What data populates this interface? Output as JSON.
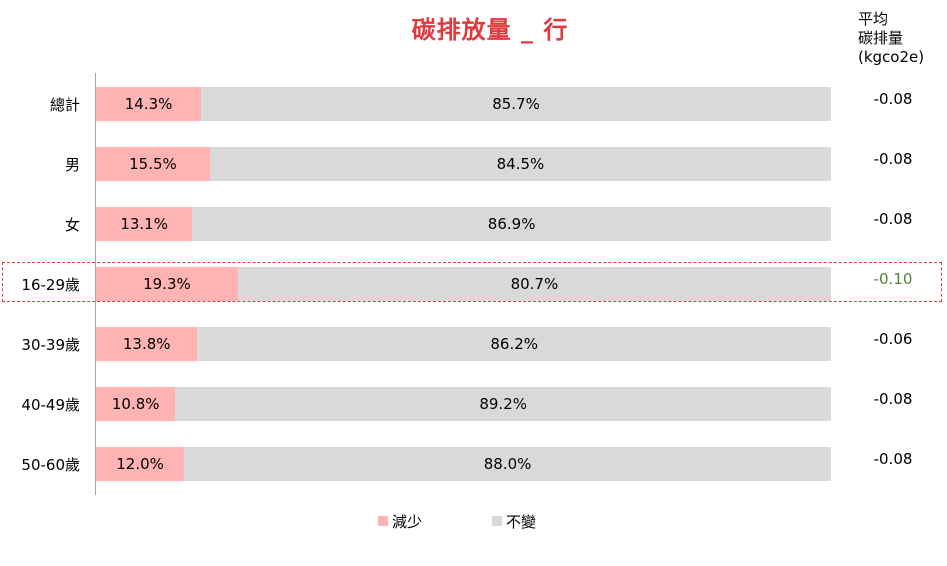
{
  "colors": {
    "title": "#e0393e",
    "reduce": "#ffb3b3",
    "unchanged": "#d9d9d9",
    "highlight_value": "#548235",
    "highlight_border": "#e0393e"
  },
  "side_header": {
    "line1": "平均",
    "line2": "碳排量",
    "line3": "(kgco2e)"
  },
  "chart_data": {
    "type": "bar",
    "orientation": "horizontal",
    "stacked": true,
    "percent_stacked": true,
    "title": "碳排放量 _ 行",
    "xlim": [
      0,
      100
    ],
    "legend_position": "bottom",
    "categories": [
      "總計",
      "男",
      "女",
      "16-29歲",
      "30-39歲",
      "40-49歲",
      "50-60歲"
    ],
    "series": [
      {
        "name": "減少",
        "values": [
          14.3,
          15.5,
          13.1,
          19.3,
          13.8,
          10.8,
          12.0
        ],
        "labels": [
          "14.3%",
          "15.5%",
          "13.1%",
          "19.3%",
          "13.8%",
          "10.8%",
          "12.0%"
        ]
      },
      {
        "name": "不變",
        "values": [
          85.7,
          84.5,
          86.9,
          80.7,
          86.2,
          89.2,
          88.0
        ],
        "labels": [
          "85.7%",
          "84.5%",
          "86.9%",
          "80.7%",
          "86.2%",
          "89.2%",
          "88.0%"
        ]
      }
    ],
    "avg_emission": [
      "-0.08",
      "-0.08",
      "-0.08",
      "-0.10",
      "-0.06",
      "-0.08",
      "-0.08"
    ],
    "highlighted_category": "16-29歲"
  }
}
